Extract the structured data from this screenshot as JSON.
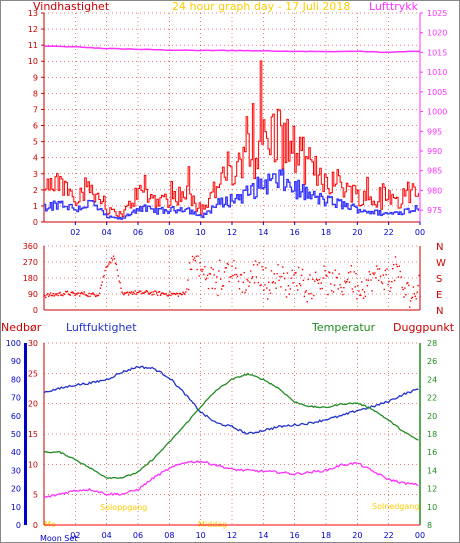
{
  "header": {
    "left_label": "Vindhastighet",
    "title": "24 hour graph day - 17 Juli 2018",
    "right_label": "Lufttrykk"
  },
  "colors": {
    "wind_gust": "#ff0000",
    "wind_avg": "#3333ff",
    "pressure": "#ff33ff",
    "wind_dir": "#ff0000",
    "humidity": "#2233cc",
    "temperature": "#228b22",
    "dewpoint": "#ff33ff",
    "rain": "#ff0000",
    "axis_blue": "#0000cc",
    "title": "#ffcc00",
    "grid": "#cc0000"
  },
  "panel3_labels": {
    "rain": "Nedbør",
    "humidity": "Luftfuktighet",
    "temperature": "Temperatur",
    "dewpoint": "Duggpunkt"
  },
  "annotations": {
    "sunrise_left": "Soloppgang",
    "sunset_right": "Solnedgang",
    "midday": "Middag",
    "moon": "Mo"
  },
  "footer": {
    "moon_text": "Moon Set"
  },
  "chart_data": [
    {
      "type": "line",
      "title": "24 hour graph day - 17 Juli 2018",
      "x_ticks": [
        "02",
        "04",
        "06",
        "08",
        "10",
        "12",
        "14",
        "16",
        "18",
        "20",
        "22",
        "00"
      ],
      "ylabel_left": "Vindhastighet",
      "ylim_left": [
        0,
        13
      ],
      "yticks_left": [
        0,
        1,
        2,
        3,
        4,
        5,
        6,
        7,
        8,
        9,
        10,
        11,
        12,
        13
      ],
      "ylabel_right": "Lufttrykk",
      "ylim_right": [
        972,
        1025
      ],
      "yticks_right": [
        975,
        980,
        985,
        990,
        995,
        1000,
        1005,
        1010,
        1015,
        1020,
        1025
      ],
      "grid": true,
      "series": [
        {
          "name": "Vindhastighet",
          "axis": "left",
          "style": "gust",
          "x": [
            0,
            1,
            2,
            3,
            4,
            5,
            6,
            7,
            8,
            9,
            10,
            11,
            12,
            13,
            14,
            15,
            16,
            17,
            18,
            19,
            20,
            21,
            22,
            23,
            24
          ],
          "y": [
            1.6,
            2.1,
            1.4,
            1.9,
            0.6,
            0.4,
            1.6,
            1.2,
            1.2,
            1.6,
            0.6,
            1.9,
            2.5,
            3.1,
            4.4,
            4.6,
            3.7,
            2.8,
            2.3,
            2.0,
            1.4,
            1.1,
            0.9,
            1.3,
            1.5
          ]
        },
        {
          "name": "avg",
          "axis": "left",
          "style": "avg",
          "x": [
            0,
            1,
            2,
            3,
            4,
            5,
            6,
            7,
            8,
            9,
            10,
            11,
            12,
            13,
            14,
            15,
            16,
            17,
            18,
            19,
            20,
            21,
            22,
            23,
            24
          ],
          "y": [
            0.9,
            1.2,
            0.8,
            1.2,
            0.3,
            0.2,
            0.9,
            0.7,
            0.7,
            0.9,
            0.3,
            1.1,
            1.4,
            1.8,
            2.4,
            2.6,
            2.1,
            1.6,
            1.3,
            1.1,
            0.8,
            0.6,
            0.5,
            0.7,
            0.9
          ]
        },
        {
          "name": "Lufttrykk",
          "axis": "right",
          "style": "pressure",
          "x": [
            0,
            2,
            4,
            6,
            8,
            10,
            12,
            14,
            16,
            18,
            20,
            22,
            23,
            24
          ],
          "y": [
            1016.6,
            1016.4,
            1016.0,
            1015.8,
            1015.6,
            1015.5,
            1015.5,
            1015.4,
            1015.3,
            1015.2,
            1015.3,
            1015.0,
            1015.2,
            1015.3
          ]
        }
      ]
    },
    {
      "type": "scatter",
      "x_ticks": [],
      "ylim": [
        0,
        360
      ],
      "yticks_left": [
        0,
        90,
        180,
        270,
        360
      ],
      "ytick_labels_left": [
        "0",
        "90",
        "180",
        "270",
        "360"
      ],
      "yticks_right": [
        0,
        90,
        180,
        270,
        360
      ],
      "ytick_labels_right": [
        "N",
        "E",
        "S",
        "W",
        "N"
      ],
      "series": [
        {
          "name": "direction",
          "style": "dir",
          "x": [
            0,
            0.5,
            1,
            1.5,
            2,
            2.5,
            3,
            3.5,
            4,
            4.5,
            5,
            5.5,
            6,
            6.5,
            7,
            7.5,
            8,
            8.5,
            9,
            9.5,
            10,
            10.5,
            11,
            11.5,
            12,
            12.5,
            13,
            13.5,
            14,
            14.5,
            15,
            15.5,
            16,
            16.5,
            17,
            17.5,
            18,
            18.5,
            19,
            19.5,
            20,
            20.5,
            21,
            21.5,
            22,
            22.5,
            23,
            23.5
          ],
          "y": [
            80,
            85,
            90,
            95,
            88,
            92,
            85,
            90,
            250,
            300,
            80,
            100,
            95,
            98,
            95,
            92,
            90,
            88,
            90,
            285,
            220,
            190,
            160,
            200,
            230,
            170,
            150,
            220,
            180,
            160,
            200,
            140,
            170,
            190,
            120,
            180,
            150,
            160,
            130,
            200,
            120,
            140,
            180,
            200,
            160,
            240,
            100,
            95
          ]
        }
      ]
    },
    {
      "type": "line",
      "x_ticks": [
        "02",
        "04",
        "06",
        "08",
        "10",
        "12",
        "14",
        "16",
        "18",
        "20",
        "22",
        "00"
      ],
      "ylabel_left": "Luftfuktighet",
      "ylim_left": [
        0,
        30
      ],
      "yticks_left": [
        0,
        5,
        10,
        15,
        20,
        25,
        30
      ],
      "ylim_rain": [
        0,
        100
      ],
      "yticks_rain": [
        0,
        10,
        20,
        30,
        40,
        50,
        60,
        70,
        80,
        90,
        100
      ],
      "ylabel_right": "Temperatur",
      "ylim_right": [
        8,
        28
      ],
      "yticks_right": [
        8,
        10,
        12,
        14,
        16,
        18,
        20,
        22,
        24,
        26,
        28
      ],
      "grid": true,
      "series": [
        {
          "name": "Luftfuktighet",
          "axis": "pct",
          "x": [
            0,
            1,
            2,
            3,
            4,
            5,
            6,
            7,
            8,
            9,
            10,
            11,
            12,
            13,
            14,
            15,
            16,
            17,
            18,
            19,
            20,
            21,
            22,
            23,
            24
          ],
          "y": [
            73,
            75,
            77,
            78,
            80,
            84,
            87,
            86,
            81,
            72,
            62,
            56,
            54,
            50,
            52,
            54,
            55,
            56,
            58,
            60,
            63,
            65,
            68,
            72,
            75
          ]
        },
        {
          "name": "Temperatur",
          "axis": "temp",
          "x": [
            0,
            1,
            2,
            3,
            4,
            5,
            6,
            7,
            8,
            9,
            10,
            11,
            12,
            13,
            14,
            15,
            16,
            17,
            18,
            19,
            20,
            21,
            22,
            23,
            24
          ],
          "y": [
            16.0,
            16.0,
            15.2,
            14.2,
            13.2,
            13.2,
            13.8,
            15.3,
            17.1,
            19.0,
            21.0,
            22.8,
            24.0,
            24.6,
            24.0,
            23.0,
            21.5,
            21.0,
            20.9,
            21.3,
            21.4,
            20.7,
            19.5,
            18.2,
            17.2
          ]
        },
        {
          "name": "Duggpunkt",
          "axis": "temp",
          "x": [
            0,
            1,
            2,
            3,
            4,
            5,
            6,
            7,
            8,
            9,
            10,
            11,
            12,
            13,
            14,
            15,
            16,
            17,
            18,
            19,
            20,
            21,
            22,
            23,
            24
          ],
          "y": [
            11.0,
            11.4,
            11.8,
            11.9,
            11.4,
            11.4,
            11.9,
            13.2,
            14.2,
            14.9,
            15.0,
            14.6,
            14.1,
            14.0,
            13.9,
            13.8,
            13.6,
            13.8,
            14.0,
            14.6,
            14.8,
            13.9,
            13.0,
            12.6,
            12.4
          ]
        },
        {
          "name": "Nedbør",
          "axis": "rain",
          "x": [
            0,
            24
          ],
          "y": [
            0,
            0
          ]
        }
      ]
    }
  ]
}
